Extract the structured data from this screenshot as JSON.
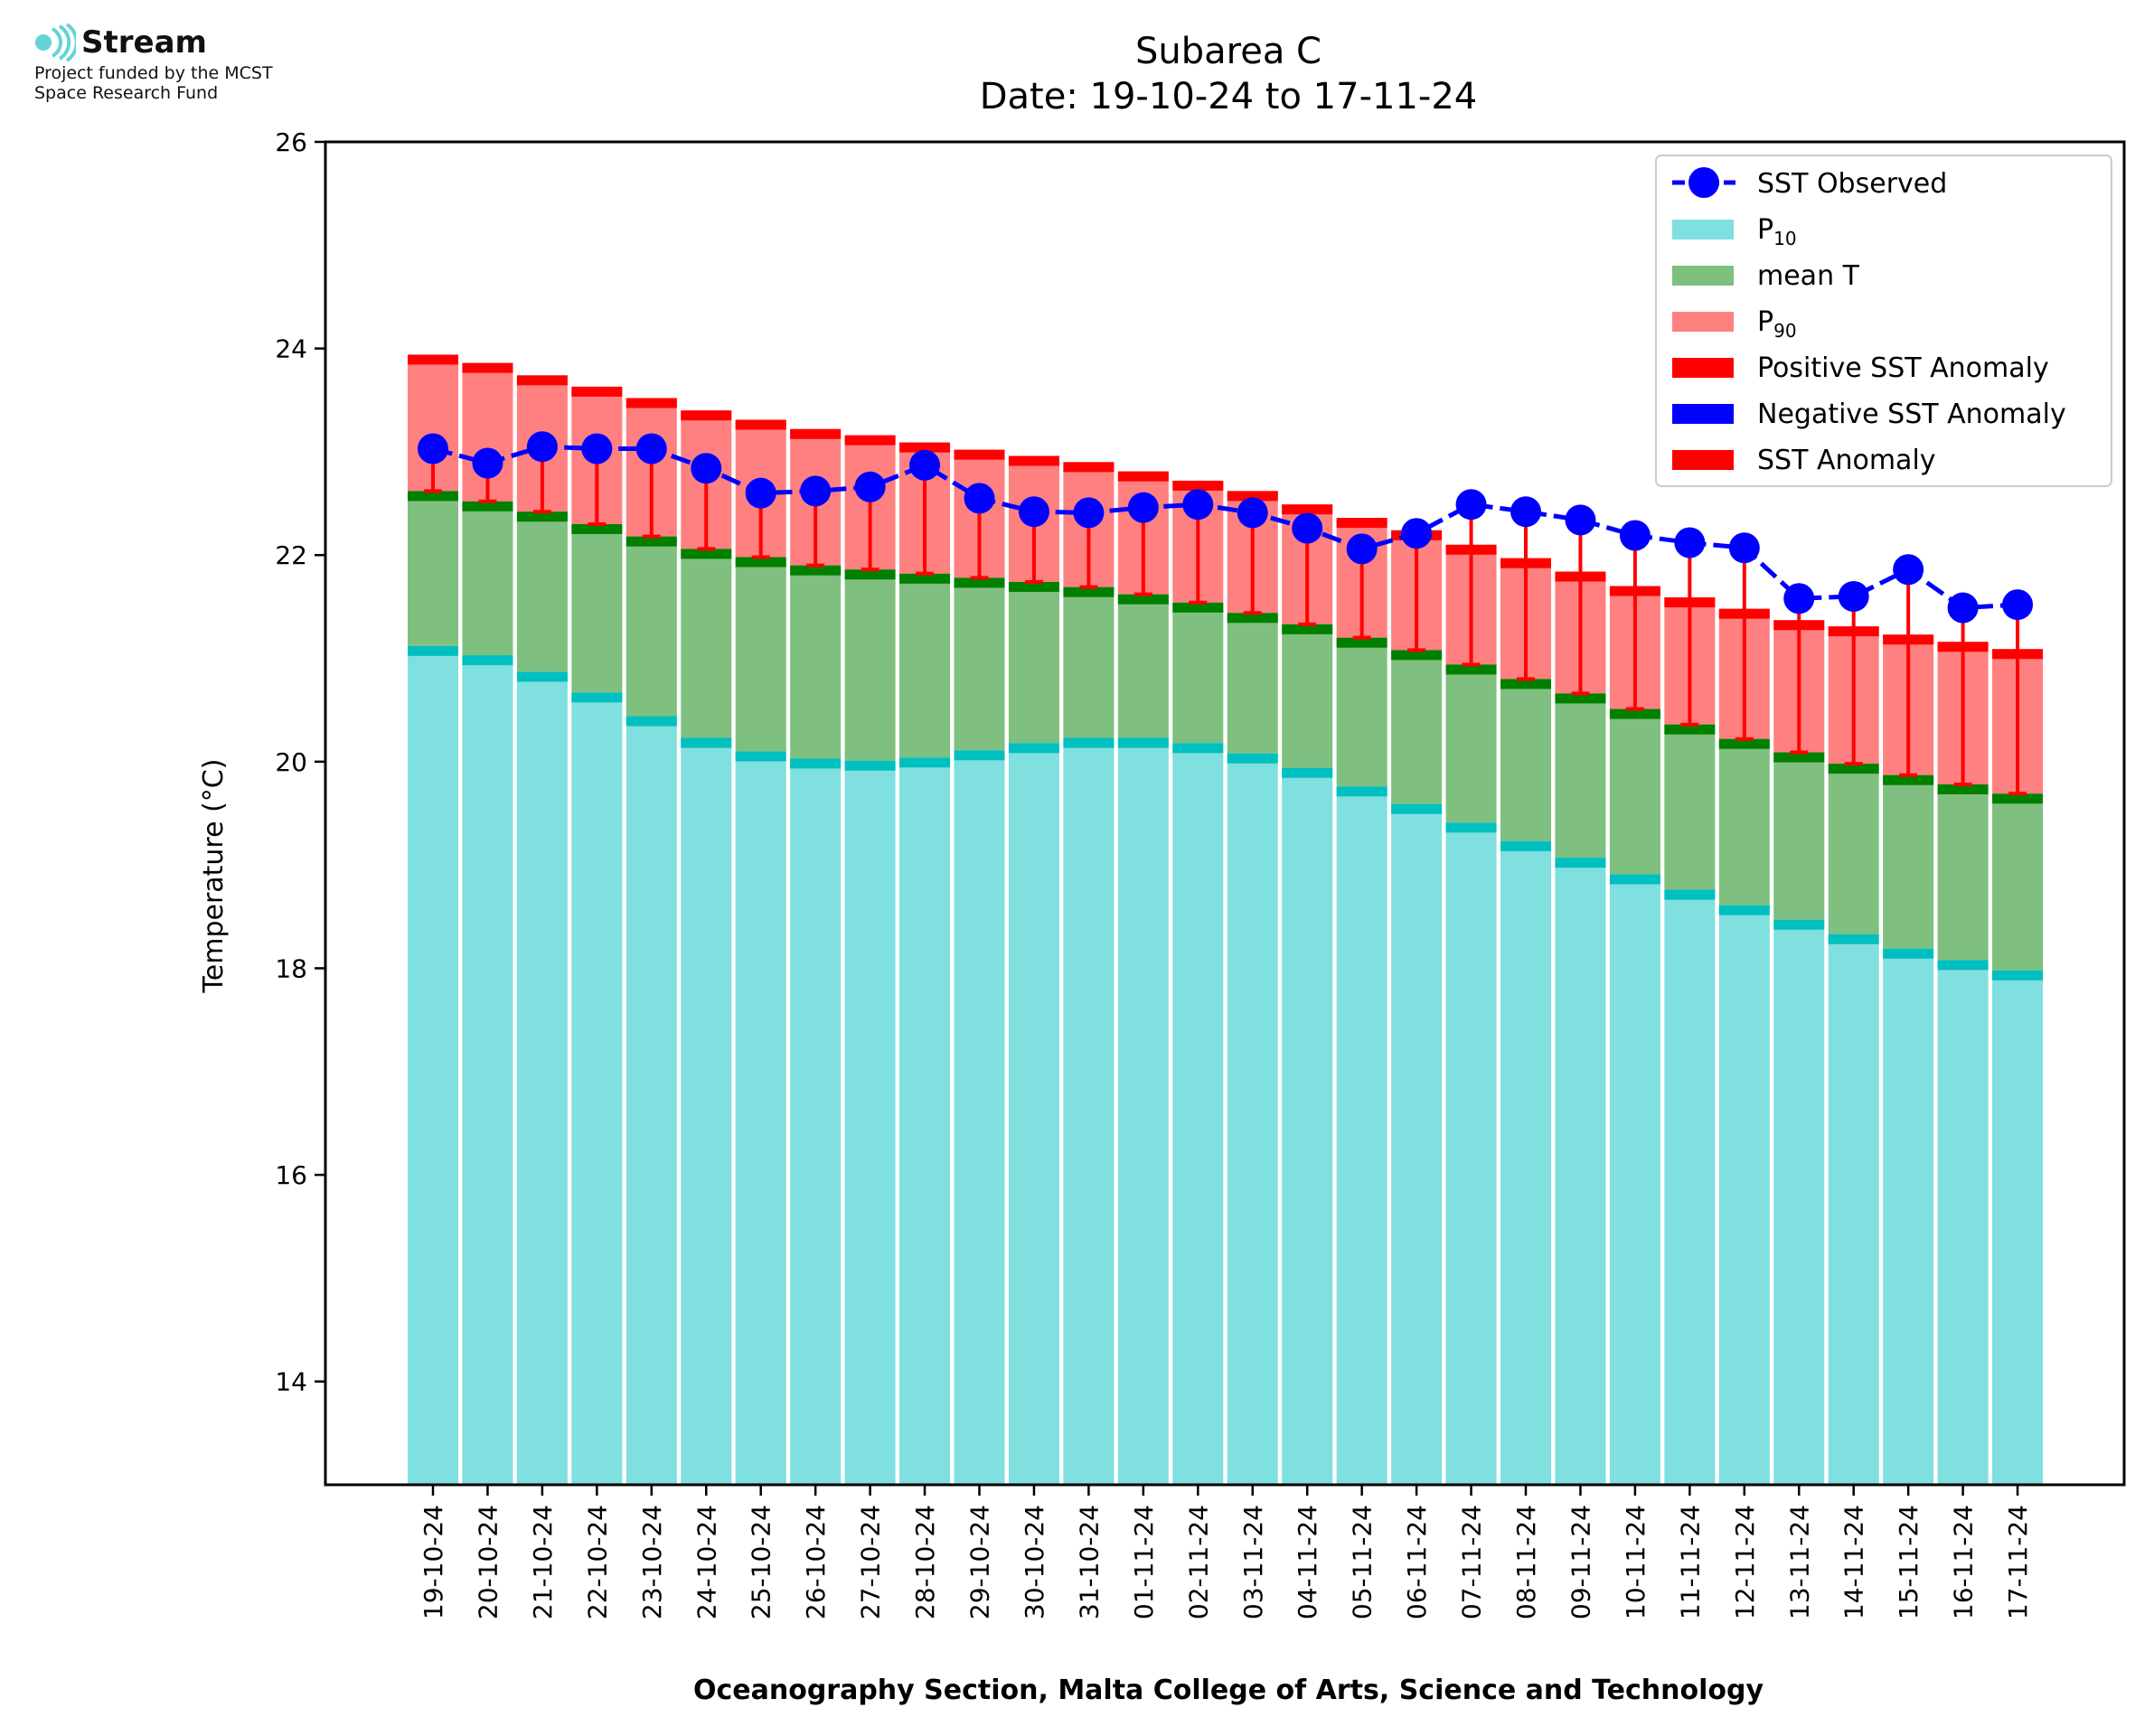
{
  "logo": {
    "name": "Stream",
    "line1": "Project funded by the MCST",
    "line2": "Space Research Fund"
  },
  "chart_data": {
    "type": "bar",
    "title": "Subarea C",
    "subtitle": "Date: 19-10-24 to 17-11-24",
    "ylabel": "Temperature (°C)",
    "xlabel": "Oceanography Section, Malta College of Arts, Science and Technology",
    "ylim": [
      13,
      26
    ],
    "yticks": [
      14,
      16,
      18,
      20,
      22,
      24,
      26
    ],
    "categories": [
      "19-10-24",
      "20-10-24",
      "21-10-24",
      "22-10-24",
      "23-10-24",
      "24-10-24",
      "25-10-24",
      "26-10-24",
      "27-10-24",
      "28-10-24",
      "29-10-24",
      "30-10-24",
      "31-10-24",
      "01-11-24",
      "02-11-24",
      "03-11-24",
      "04-11-24",
      "05-11-24",
      "06-11-24",
      "07-11-24",
      "08-11-24",
      "09-11-24",
      "10-11-24",
      "11-11-24",
      "12-11-24",
      "13-11-24",
      "14-11-24",
      "15-11-24",
      "16-11-24",
      "17-11-24"
    ],
    "legend_position": "top-right",
    "series": [
      {
        "name": "SST Observed",
        "kind": "line",
        "color": "#0000ff",
        "values": [
          23.03,
          22.89,
          23.05,
          23.03,
          23.03,
          22.84,
          22.6,
          22.62,
          22.66,
          22.87,
          22.55,
          22.42,
          22.41,
          22.46,
          22.49,
          22.41,
          22.26,
          22.06,
          22.21,
          22.49,
          22.42,
          22.34,
          22.19,
          22.12,
          22.07,
          21.58,
          21.6,
          21.86,
          21.49,
          21.52
        ]
      },
      {
        "name": "P10",
        "kind": "bar",
        "color": "#80dfdf",
        "values": [
          21.12,
          21.03,
          20.87,
          20.67,
          20.44,
          20.23,
          20.1,
          20.03,
          20.01,
          20.04,
          20.11,
          20.18,
          20.23,
          20.23,
          20.18,
          20.08,
          19.94,
          19.76,
          19.59,
          19.41,
          19.23,
          19.07,
          18.91,
          18.76,
          18.61,
          18.47,
          18.33,
          18.19,
          18.08,
          17.98
        ]
      },
      {
        "name": "mean T",
        "kind": "bar",
        "color": "#7fbf7f",
        "values": [
          22.62,
          22.52,
          22.42,
          22.3,
          22.18,
          22.06,
          21.98,
          21.9,
          21.86,
          21.82,
          21.78,
          21.74,
          21.69,
          21.62,
          21.54,
          21.44,
          21.33,
          21.2,
          21.08,
          20.94,
          20.8,
          20.66,
          20.51,
          20.36,
          20.22,
          20.09,
          19.98,
          19.87,
          19.78,
          19.69
        ]
      },
      {
        "name": "P90",
        "kind": "bar",
        "color": "#ff8080",
        "values": [
          23.94,
          23.86,
          23.74,
          23.63,
          23.52,
          23.4,
          23.31,
          23.22,
          23.16,
          23.09,
          23.02,
          22.96,
          22.9,
          22.81,
          22.72,
          22.62,
          22.49,
          22.36,
          22.24,
          22.1,
          21.97,
          21.84,
          21.7,
          21.59,
          21.48,
          21.37,
          21.31,
          21.23,
          21.16,
          21.09
        ]
      },
      {
        "name": "Positive SST Anomaly",
        "kind": "errorbar",
        "color": "#ff0000"
      },
      {
        "name": "Negative SST Anomaly",
        "kind": "errorbar",
        "color": "#0000ff"
      },
      {
        "name": "SST Anomaly",
        "kind": "errorbar",
        "color": "#ff0000"
      }
    ]
  }
}
